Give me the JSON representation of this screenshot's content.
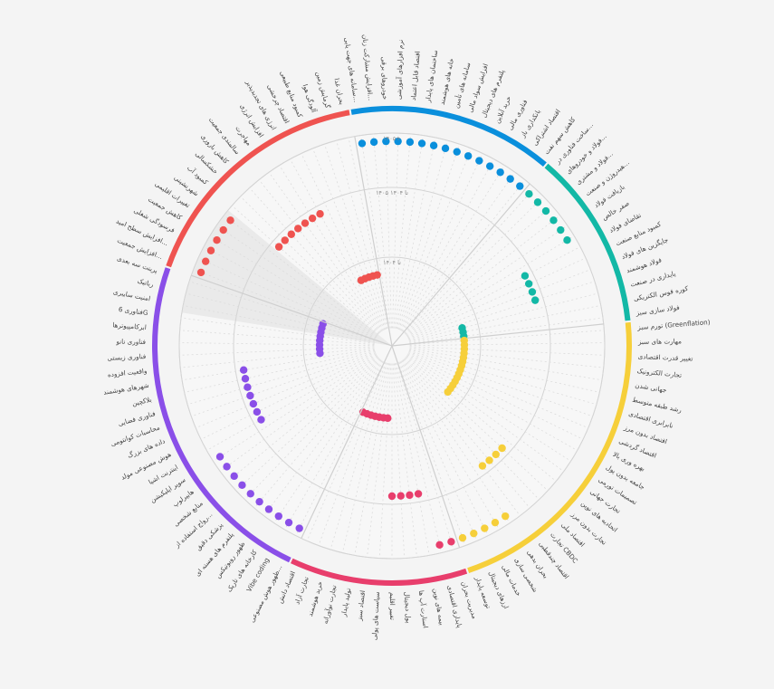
{
  "chart_data": {
    "type": "scatter",
    "title": "",
    "ring_labels": [
      "تا ۱۴۰۴",
      "۱۴۰۵ تا ۱۴۰۴",
      "۱۴۰۵+"
    ],
    "sectors": [
      {
        "name": "s1",
        "color": "#0a8fdc",
        "items": [
          "سامانه های جهت یابی...",
          "افزایش مشارکت زنان...",
          "خودروهای برقی",
          "نرم افزارهای آموزشی",
          "اقتصاد قابل اعتماد",
          "ساختمان های پایدار",
          "خانه های هوشمند",
          "سامانه های تأمین",
          "افزایش سواد مالی",
          "پلتفرم های دیجیتال",
          "خرید آنلاین",
          "فناوری مالی",
          "بانکداری باز",
          "اقتصاد اشتراکی",
          "کاهش سهم نفت"
        ],
        "ring": [
          3,
          3,
          3,
          3,
          3,
          3,
          3,
          3,
          3,
          3,
          3,
          3,
          3,
          3,
          3
        ]
      },
      {
        "name": "s2",
        "color": "#13b8a6",
        "items": [
          "ساخت فناوری در...",
          "فولاد و خودروهای...",
          "فولاد و مشتری...",
          "هیدروژن و صنعت...",
          "بازیافت فولاد",
          "صفر خالص",
          "تقاضای فولاد",
          "کمبود منابع صنعت",
          "جایگزین های فولاد",
          "فولاد هوشمند",
          "پایداری در صنعت",
          "کوره قوس الکتریکی",
          "فولاد سازی سبز"
        ],
        "ring": [
          3,
          3,
          3,
          3,
          3,
          3,
          2,
          2,
          2,
          2,
          1,
          1,
          1
        ]
      },
      {
        "name": "s3",
        "color": "#f6cf3a",
        "items": [
          "تورم سبز (Greenflation)",
          "مهارت های سبز",
          "تغییر قدرت اقتصادی",
          "تجارت الکترونیک",
          "جهانی شدن",
          "رشد طبقه متوسط",
          "نابرابری اقتصادی",
          "اقتصاد بدون مرز",
          "اقتصاد گردشی",
          "بهره وری بالا",
          "جامعه بدون پول",
          "تصمیمات تورمی",
          "تجارت جهانی",
          "اتحادیه های نوین",
          "تجارت بدون مرز",
          "اقتصاد ملی",
          "تجارت CBDC",
          "اقتصاد چندقطبی",
          "بحران بدهی",
          "شخصی سازی",
          "خدمات مالی",
          "ارزهای دیجیتال",
          "توسعه پایدار"
        ],
        "ring": [
          1,
          1,
          1,
          1,
          1,
          1,
          1,
          1,
          1,
          1,
          1,
          1,
          1,
          1,
          2,
          2,
          2,
          2,
          3,
          3,
          3,
          3,
          3
        ]
      },
      {
        "name": "s4",
        "color": "#e83e6c",
        "items": [
          "مدیریت بحران",
          "پایداری اقتصادی",
          "بیمه های نوین",
          "استارت آپ ها",
          "پول دیجیتال",
          "تغییر اقلیم",
          "سیاست های پولی",
          "اقتصاد سبز",
          "تولید پایدار",
          "تجارت نوآورانه",
          "خرید هوشمند",
          "تجارت آزاد",
          "اقتصاد دانش"
        ],
        "ring": [
          3,
          3,
          2,
          2,
          2,
          2,
          1,
          1,
          1,
          1,
          1,
          1,
          1
        ]
      },
      {
        "name": "s5",
        "color": "#8a4fe8",
        "items": [
          "ظهور هوش مصنوعی...",
          "Vibe coding",
          "کارخانه های تاریک",
          "ظهور روبوتیکس",
          "پلتفرم های هسته ای",
          "پزشکی دقیق",
          "رواج استفاده از...",
          "منابع شخصی",
          "هایپرلوپ",
          "سوپر اپلیکیشن",
          "اینترنت اشیا",
          "هوش مصنوعی مولد",
          "داده های بزرگ",
          "محاسبات کوانتومی",
          "فناوری فضایی",
          "بلاکچین",
          "شهرهای هوشمند",
          "واقعیت افزوده",
          "فناوری زیستی",
          "فناوری نانو",
          "ابرکامپیوترها",
          "فناوری 6G",
          "امنیت سایبری",
          "رباتیک",
          "پرینت سه بعدی"
        ],
        "ring": [
          3,
          3,
          3,
          3,
          3,
          3,
          3,
          3,
          3,
          3,
          2,
          2,
          2,
          2,
          2,
          2,
          2,
          1,
          1,
          1,
          1,
          1,
          1,
          1,
          1
        ]
      },
      {
        "name": "s6",
        "color": "#ef5350",
        "items": [
          "افزایش جمعیت...",
          "افزایش سطح امید...",
          "فرسودگی شغلی",
          "کاهش جمعیت",
          "تغییرات اقلیمی",
          "شهرنشینی",
          "کمبود آب",
          "خشکسالی",
          "کاهش باروری",
          "سالمندی جمعیت",
          "مهاجرت",
          "افزایش انرژی",
          "انرژی های تجدیدپذیر",
          "اقتصاد چرخشی",
          "کمبود منابع طبیعی",
          "آلودگی هوا",
          "گرمایش زمین",
          "بحران غذا"
        ],
        "ring": [
          3,
          3,
          3,
          3,
          3,
          3,
          2,
          2,
          2,
          2,
          2,
          2,
          2,
          1,
          1,
          1,
          1,
          1
        ]
      }
    ]
  }
}
